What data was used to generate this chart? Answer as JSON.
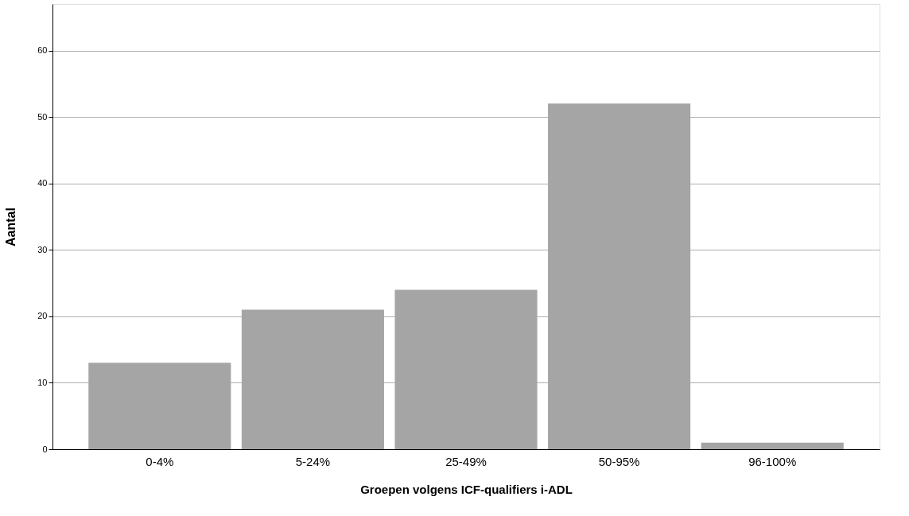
{
  "chart_data": {
    "type": "bar",
    "xlabel": "Groepen volgens ICF-qualifiers i-ADL",
    "ylabel": "Aantal",
    "categories": [
      "0-4%",
      "5-24%",
      "25-49%",
      "50-95%",
      "96-100%"
    ],
    "values": [
      13,
      21,
      24,
      52,
      1
    ],
    "color": "#a5a5a5",
    "ylim": [
      0,
      67
    ],
    "yticks": [
      0,
      10,
      20,
      30,
      40,
      50,
      60
    ],
    "grid": "y"
  }
}
